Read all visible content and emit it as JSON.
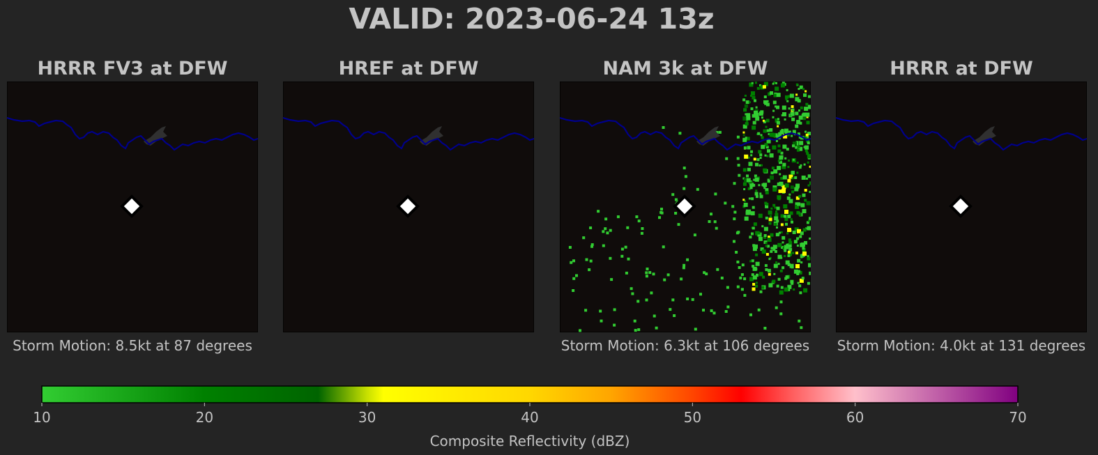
{
  "chart_data": {
    "type": "heatmap",
    "title": "VALID: 2023-06-24 13z",
    "panels": [
      {
        "title": "HRRR FV3 at DFW",
        "storm_motion": "Storm Motion: 8.5kt at 87 degrees",
        "echo_coverage": "none"
      },
      {
        "title": "HREF at DFW",
        "storm_motion": "",
        "echo_coverage": "none"
      },
      {
        "title": "NAM 3k at DFW",
        "storm_motion": "Storm Motion: 6.3kt at 106 degrees",
        "echo_coverage": "scattered echoes, densest along eastern edge"
      },
      {
        "title": "HRRR at DFW",
        "storm_motion": "Storm Motion: 4.0kt at 131 degrees",
        "echo_coverage": "none"
      }
    ],
    "colorbar": {
      "label": "Composite Reflectivity (dBZ)",
      "range": [
        10,
        70
      ],
      "ticks": [
        "10",
        "20",
        "30",
        "40",
        "50",
        "60",
        "70"
      ],
      "stops": [
        {
          "value": 10,
          "color": "#32cd32"
        },
        {
          "value": 20,
          "color": "#008000"
        },
        {
          "value": 27,
          "color": "#006400"
        },
        {
          "value": 30,
          "color": "#c8e000"
        },
        {
          "value": 31,
          "color": "#ffff00"
        },
        {
          "value": 40,
          "color": "#ffd700"
        },
        {
          "value": 45,
          "color": "#ffa500"
        },
        {
          "value": 50,
          "color": "#ff4500"
        },
        {
          "value": 53,
          "color": "#ff0000"
        },
        {
          "value": 56,
          "color": "#ff5a5a"
        },
        {
          "value": 60,
          "color": "#ffc0cb"
        },
        {
          "value": 65,
          "color": "#c060a8"
        },
        {
          "value": 70,
          "color": "#800080"
        }
      ]
    },
    "map_colors": {
      "background": "#100c0b",
      "river": "#00008b",
      "lake": "#303030",
      "station_marker": "#ffffff"
    }
  }
}
